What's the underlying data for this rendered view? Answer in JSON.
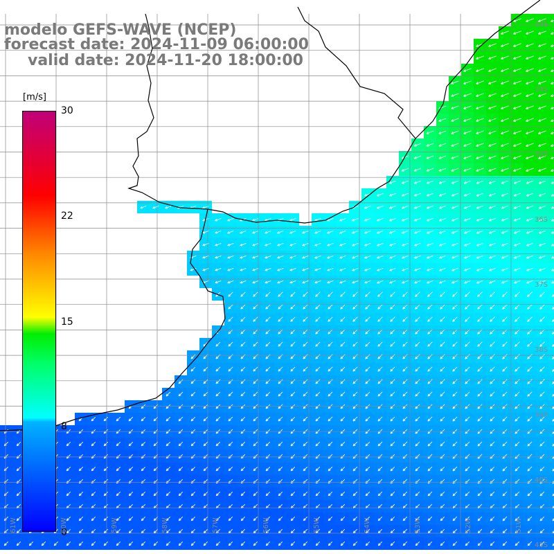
{
  "header": {
    "title": "modelo GEFS-WAVE (NCEP)",
    "forecast": "forecast date: 2024-11-09 06:00:00",
    "valid": "valid date: 2024-11-20 18:00:00"
  },
  "colorbar": {
    "unit": "[m/s]",
    "ticks": [
      "30",
      "22",
      "15",
      "8",
      "0"
    ],
    "tick_values": [
      30,
      22,
      15,
      8,
      0
    ],
    "range": [
      0,
      30
    ],
    "colors": [
      "#0000ff",
      "#00b3ff",
      "#00ffff",
      "#00ff66",
      "#00ee00",
      "#ffff00",
      "#ff8800",
      "#ff0000",
      "#c0007a"
    ]
  },
  "lat_labels": [
    "33S",
    "34S",
    "35S",
    "36S",
    "37S",
    "38S",
    "39S",
    "40S",
    "41S"
  ],
  "lon_labels": [
    "61W",
    "60W",
    "59W",
    "58W",
    "57W",
    "56W",
    "55W",
    "54W",
    "53W",
    "52W",
    "51W"
  ],
  "field": {
    "variable": "wind speed",
    "arrow_direction": "from northeast",
    "land_color": "#ffffff",
    "coast_color": "#000000",
    "grid_color": "#888888"
  }
}
